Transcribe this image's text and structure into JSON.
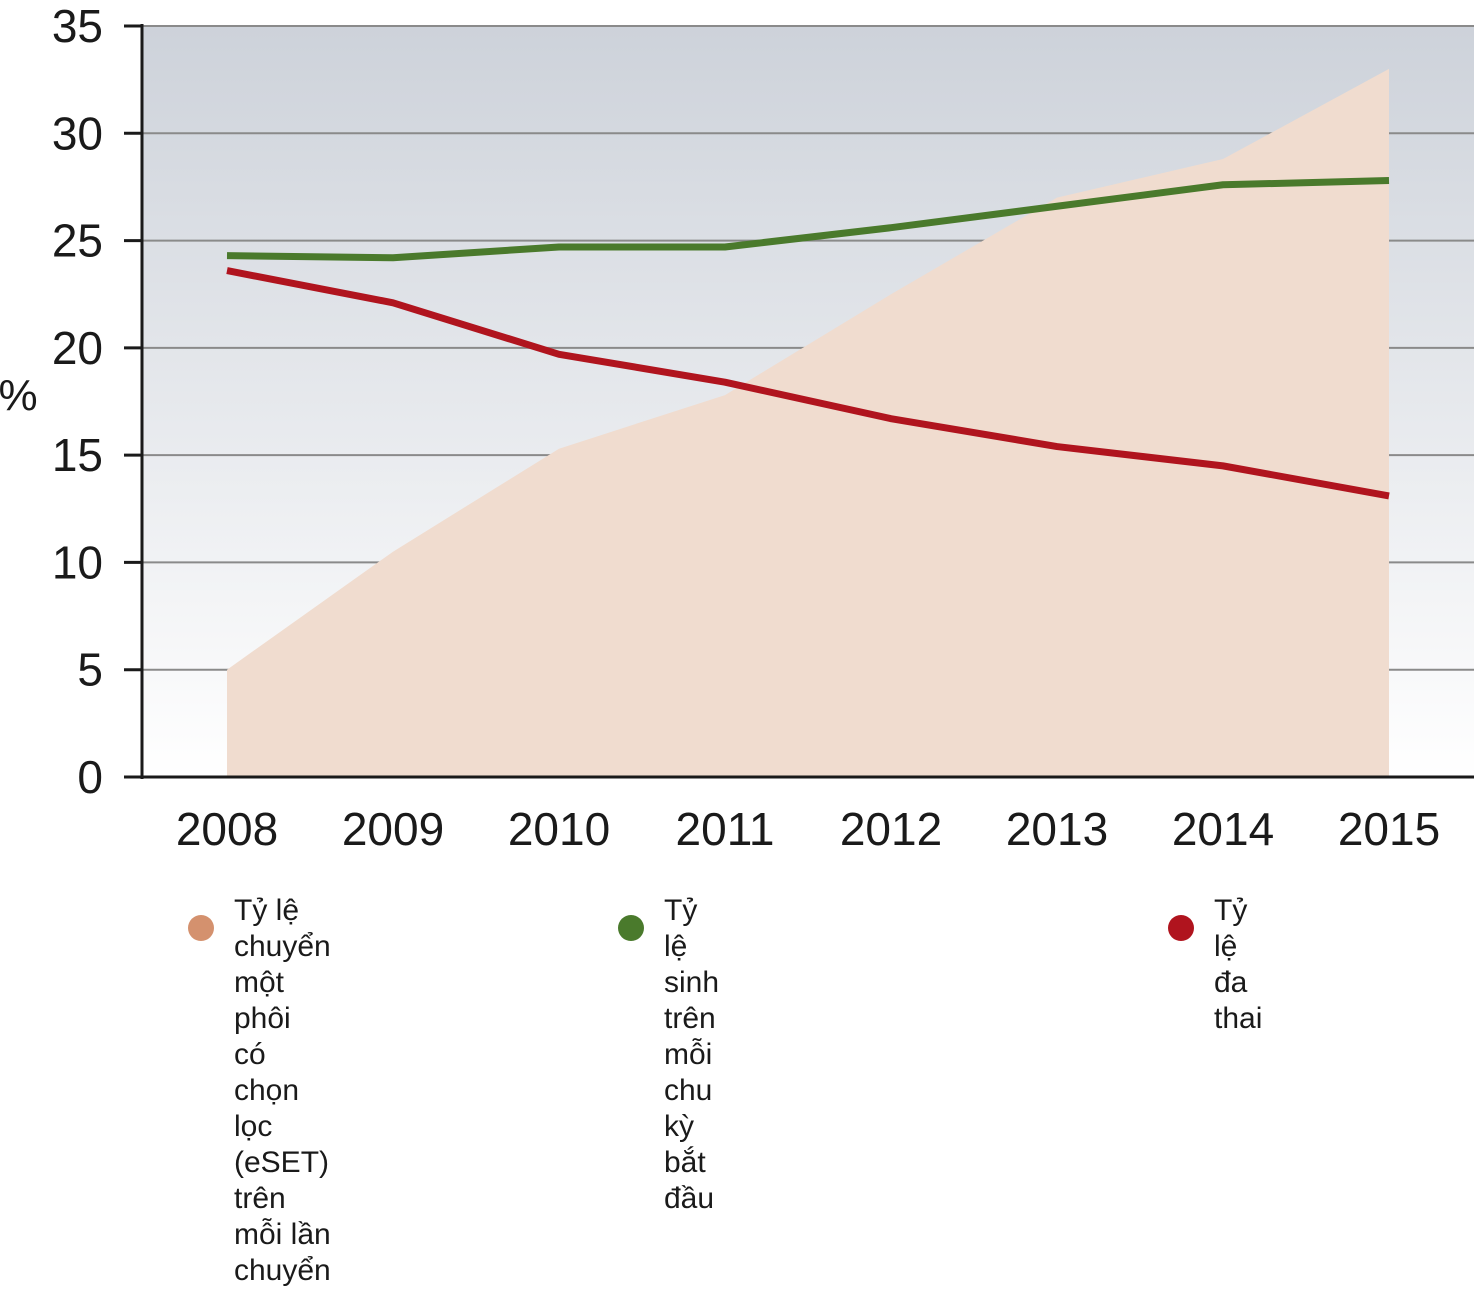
{
  "chart_data": {
    "type": "line",
    "ylabel": "%",
    "ylim": [
      0,
      35
    ],
    "yticks": [
      0,
      5,
      10,
      15,
      20,
      25,
      30,
      35
    ],
    "x": [
      "2008",
      "2009",
      "2010",
      "2011",
      "2012",
      "2013",
      "2014",
      "2015"
    ],
    "grid": true,
    "legend_position": "bottom",
    "series": [
      {
        "name": "Tỷ lệ chuyển một phôi\ncó chọn lọc (eSET)\ntrên mỗi lần chuyển",
        "type": "area",
        "color": "#f0dccf",
        "values": [
          5.0,
          10.5,
          15.3,
          17.8,
          22.5,
          27.0,
          28.8,
          33.0
        ]
      },
      {
        "name": "Tỷ lệ sinh trên mỗi\nchu kỳ bắt đầu",
        "type": "line",
        "color": "#4a7a2c",
        "values": [
          24.3,
          24.2,
          24.7,
          24.7,
          25.6,
          26.6,
          27.6,
          27.8
        ]
      },
      {
        "name": "Tỷ lệ đa thai",
        "type": "line",
        "color": "#b0141e",
        "values": [
          23.6,
          22.1,
          19.7,
          18.4,
          16.7,
          15.4,
          14.5,
          13.1
        ]
      }
    ],
    "legend_dot_colors": [
      "#d4916e",
      "#4a7a2c",
      "#b0141e"
    ],
    "background_gradient": [
      "#cdd2da",
      "#ffffff"
    ]
  }
}
